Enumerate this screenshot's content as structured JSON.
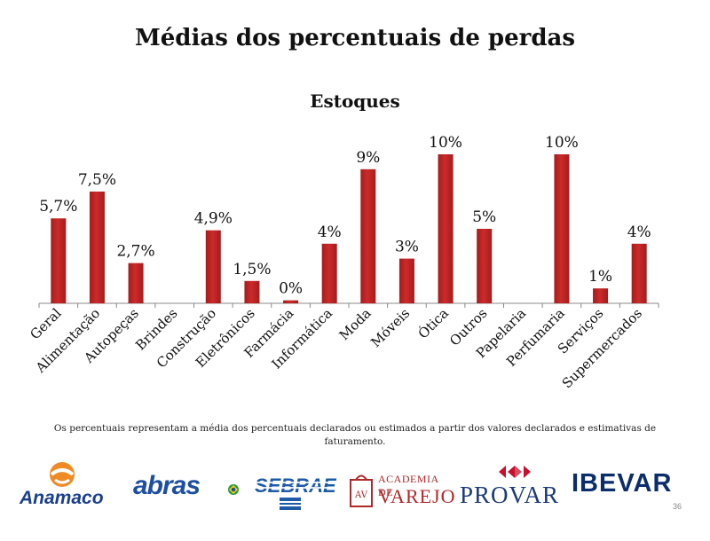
{
  "page": {
    "title": "Médias dos percentuais de perdas",
    "footnote": "Os percentuais representam a média dos percentuais declarados ou estimados a partir dos valores declarados e estimativas de faturamento.",
    "page_number": "36"
  },
  "logos": [
    {
      "name": "anamaco",
      "text": "Anamaco"
    },
    {
      "name": "abras",
      "text": "abras"
    },
    {
      "name": "sebrae",
      "text": "SEBRAE"
    },
    {
      "name": "academia-de-varejo",
      "line1": "ACADEMIA DE",
      "line2": "VAREJO"
    },
    {
      "name": "provar",
      "text": "PROVAR"
    },
    {
      "name": "ibevar",
      "text": "IBEVAR"
    }
  ],
  "colors": {
    "bar": "#cc2a2a",
    "bar_dark": "#a51c1c",
    "axis": "#888888",
    "anamaco_orange": "#f08a24",
    "anamaco_blue": "#1a3f8f",
    "abras_blue": "#1d4fa0",
    "sebrae_blue": "#1e5aa8",
    "varejo_red": "#b0282a",
    "provar_red": "#c8102e",
    "ibevar_blue": "#0b2d6b"
  },
  "chart_data": {
    "type": "bar",
    "title": "Estoques",
    "categories": [
      "Geral",
      "Alimentação",
      "Autopeças",
      "Brindes",
      "Construção",
      "Eletrônicos",
      "Farmácia",
      "Informática",
      "Moda",
      "Móveis",
      "Ótica",
      "Outros",
      "Papelaria",
      "Perfumaria",
      "Serviços",
      "Supermercados"
    ],
    "values": [
      5.7,
      7.5,
      2.7,
      0,
      4.9,
      1.5,
      0.2,
      4,
      9,
      3,
      10,
      5,
      0,
      10,
      1,
      4
    ],
    "labels": [
      "5,7%",
      "7,5%",
      "2,7%",
      "",
      "4,9%",
      "1,5%",
      "0%",
      "4%",
      "9%",
      "3%",
      "10%",
      "5%",
      "",
      "10%",
      "1%",
      "4%"
    ],
    "ylim": [
      0,
      10
    ],
    "xlabel": "",
    "ylabel": "",
    "grid": false,
    "legend": "none"
  }
}
